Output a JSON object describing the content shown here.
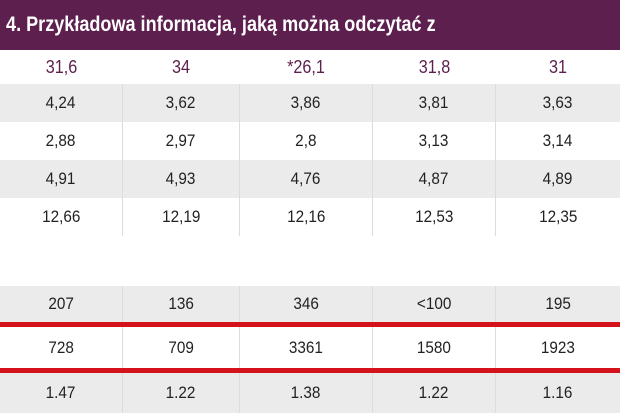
{
  "title": "n 4. Przykładowa informacja, jaką można odczytać z",
  "colors": {
    "header_bg": "#5c1f4e",
    "header_value_text": "#5c1f4e",
    "row_gray": "#ebebeb",
    "highlight_line": "#d4121c"
  },
  "table": {
    "header": [
      "31,6",
      "34",
      "*26,1",
      "31,8",
      "31"
    ],
    "rows": [
      [
        "4,24",
        "3,62",
        "3,86",
        "3,81",
        "3,63"
      ],
      [
        "2,88",
        "2,97",
        "2,8",
        "3,13",
        "3,14"
      ],
      [
        "4,91",
        "4,93",
        "4,76",
        "4,87",
        "4,89"
      ],
      [
        "12,66",
        "12,19",
        "12,16",
        "12,53",
        "12,35"
      ],
      [
        "207",
        "136",
        "346",
        "<100",
        "195"
      ],
      [
        "728",
        "709",
        "3361",
        "1580",
        "1923"
      ],
      [
        "1.47",
        "1.22",
        "1.38",
        "1.22",
        "1.16"
      ]
    ]
  }
}
